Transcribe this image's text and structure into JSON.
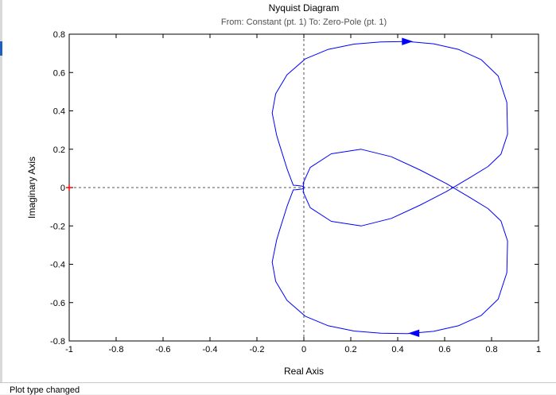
{
  "status_text": "Plot type changed",
  "chart_data": {
    "type": "line",
    "title": "Nyquist Diagram",
    "subtitle": "From: Constant (pt. 1)  To: Zero-Pole (pt. 1)",
    "xlabel": "Real Axis",
    "ylabel": "Imaginary Axis",
    "xlim": [
      -1,
      1
    ],
    "ylim": [
      -0.8,
      0.8
    ],
    "xticks": [
      -1,
      -0.8,
      -0.6,
      -0.4,
      -0.2,
      0,
      0.2,
      0.4,
      0.6,
      0.8,
      1
    ],
    "xtick_labels": [
      "-1",
      "-0.8",
      "-0.6",
      "-0.4",
      "-0.2",
      "0",
      "0.2",
      "0.4",
      "0.6",
      "0.8",
      "1"
    ],
    "yticks": [
      0.8,
      0.6,
      0.4,
      0.2,
      0,
      -0.2,
      -0.4,
      -0.6,
      -0.8
    ],
    "ytick_labels": [
      "0.8",
      "0.6",
      "0.4",
      "0.2",
      "0",
      "-0.2",
      "-0.4",
      "-0.6",
      "-0.8"
    ],
    "grid": false,
    "zero_lines": true,
    "critical_point": {
      "x": -1,
      "y": 0,
      "color": "#ff0000"
    },
    "curve_color": "#0000ff",
    "series": [
      {
        "x": [
          0.0,
          -0.006,
          -0.019,
          -0.034,
          -0.045,
          -0.07,
          -0.105,
          -0.116,
          -0.135,
          -0.12,
          -0.072,
          0.006,
          0.104,
          0.214,
          0.328,
          0.443,
          0.553,
          0.66,
          0.756,
          0.828,
          0.865,
          0.868,
          0.84,
          0.785,
          0.705,
          0.607,
          0.496,
          0.373,
          0.244,
          0.117,
          0.027,
          -0.003,
          0.0
        ],
        "y": [
          0.0,
          0.007,
          0.009,
          0.011,
          0.012,
          0.093,
          0.229,
          0.273,
          0.389,
          0.489,
          0.588,
          0.671,
          0.721,
          0.748,
          0.76,
          0.762,
          0.75,
          0.72,
          0.667,
          0.582,
          0.444,
          0.278,
          0.174,
          0.11,
          0.05,
          -0.021,
          -0.091,
          -0.161,
          -0.2,
          -0.176,
          -0.105,
          -0.023,
          0.0
        ]
      },
      {
        "x": [
          0.0,
          -0.006,
          -0.019,
          -0.034,
          -0.045,
          -0.07,
          -0.105,
          -0.116,
          -0.135,
          -0.12,
          -0.072,
          0.006,
          0.104,
          0.214,
          0.328,
          0.443,
          0.553,
          0.66,
          0.756,
          0.828,
          0.865,
          0.868,
          0.84,
          0.785,
          0.705,
          0.607,
          0.496,
          0.373,
          0.244,
          0.117,
          0.027,
          -0.003,
          0.0
        ],
        "y": [
          0.0,
          -0.007,
          -0.009,
          -0.011,
          -0.012,
          -0.093,
          -0.229,
          -0.273,
          -0.389,
          -0.489,
          -0.588,
          -0.671,
          -0.721,
          -0.748,
          -0.76,
          -0.762,
          -0.75,
          -0.72,
          -0.667,
          -0.582,
          -0.444,
          -0.278,
          -0.174,
          -0.11,
          -0.05,
          0.021,
          0.091,
          0.161,
          0.2,
          0.176,
          0.105,
          0.023,
          0.0
        ]
      }
    ]
  }
}
